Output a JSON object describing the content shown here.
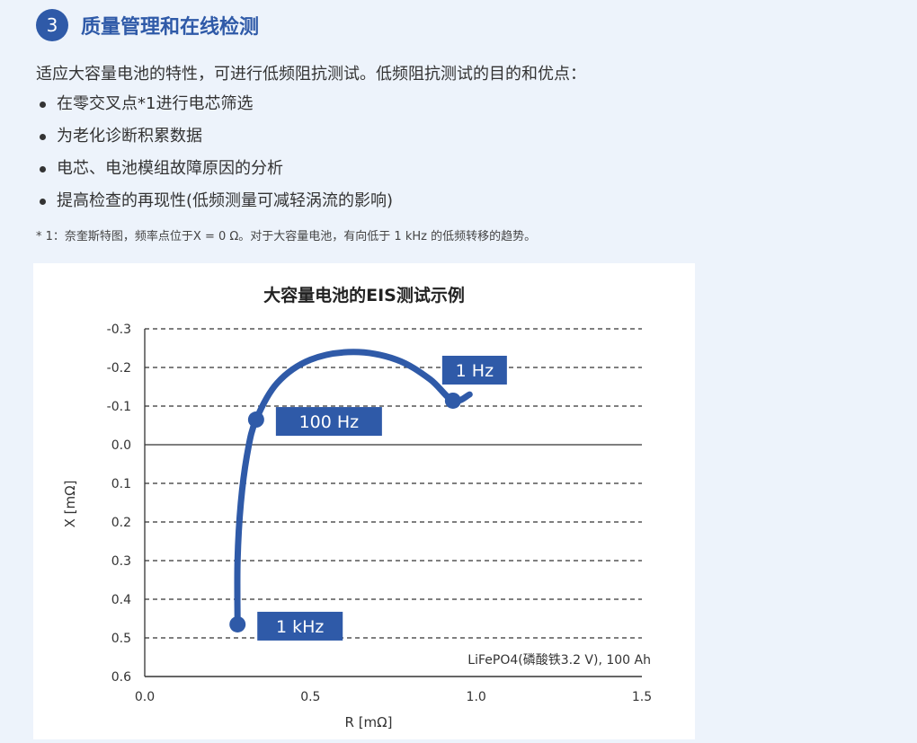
{
  "section": {
    "number": "3",
    "title": "质量管理和在线检测"
  },
  "intro": "适应大容量电池的特性，可进行低频阻抗测试。低频阻抗测试的目的和优点：",
  "bullets": [
    "在零交叉点*1进行电芯筛选",
    "为老化诊断积累数据",
    "电芯、电池模组故障原因的分析",
    "提高检查的再现性(低频测量可减轻涡流的影响)"
  ],
  "footnote": "* 1：奈奎斯特图，频率点位于X = 0 Ω。对于大容量电池，有向低于 1 kHz 的低频转移的趋势。",
  "chart_data": {
    "type": "line",
    "title": "大容量电池的EIS测试示例",
    "xlabel": "R [mΩ]",
    "ylabel": "X [mΩ]",
    "xlim": [
      0.0,
      1.5
    ],
    "ylim": [
      -0.3,
      0.6
    ],
    "y_inverted": true,
    "xticks": [
      "0.0",
      "0.5",
      "1.0",
      "1.5"
    ],
    "yticks": [
      "-0.3",
      "-0.2",
      "-0.1",
      "0.0",
      "0.1",
      "0.2",
      "0.3",
      "0.4",
      "0.5",
      "0.6"
    ],
    "grid": "horizontal dashed",
    "color": "#2f5aa8",
    "series": [
      {
        "points": [
          [
            0.28,
            0.465
          ],
          [
            0.28,
            0.3
          ],
          [
            0.29,
            0.15
          ],
          [
            0.31,
            0.02
          ],
          [
            0.336,
            -0.065
          ],
          [
            0.4,
            -0.16
          ],
          [
            0.5,
            -0.22
          ],
          [
            0.63,
            -0.24
          ],
          [
            0.76,
            -0.22
          ],
          [
            0.86,
            -0.17
          ],
          [
            0.93,
            -0.114
          ],
          [
            0.98,
            -0.13
          ]
        ]
      }
    ],
    "annotations": [
      {
        "label": "1 kHz",
        "x": 0.28,
        "y": 0.465
      },
      {
        "label": "100 Hz",
        "x": 0.336,
        "y": -0.065
      },
      {
        "label": "1 Hz",
        "x": 0.93,
        "y": -0.114
      }
    ],
    "note": "LiFePO4(磷酸铁3.2 V), 100 Ah"
  }
}
